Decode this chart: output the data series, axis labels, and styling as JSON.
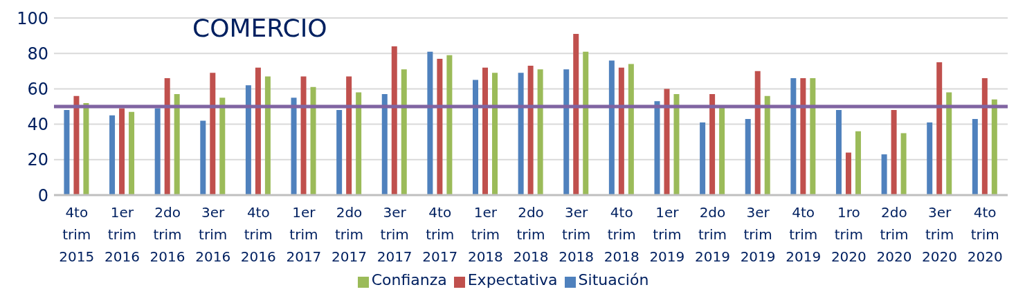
{
  "chart_data": {
    "type": "bar",
    "title": "COMERCIO",
    "categories": [
      "4to trim 2015",
      "1er trim 2016",
      "2do trim 2016",
      "3er trim 2016",
      "4to trim 2016",
      "1er trim 2017",
      "2do trim 2017",
      "3er trim 2017",
      "4to trim 2017",
      "1er trim 2018",
      "2do trim 2018",
      "3er trim 2018",
      "4to trim 2018",
      "1er trim 2019",
      "2do trim 2019",
      "3er trim 2019",
      "4to trim 2019",
      "1ro trim 2020",
      "2do trim 2020",
      "3er trim 2020",
      "4to trim 2020"
    ],
    "series": [
      {
        "name": "Situación",
        "color": "#4f81bd",
        "values": [
          48,
          45,
          49,
          42,
          62,
          55,
          48,
          57,
          81,
          65,
          69,
          71,
          76,
          53,
          41,
          43,
          66,
          48,
          23,
          41,
          43
        ]
      },
      {
        "name": "Expectativa",
        "color": "#c0504d",
        "values": [
          56,
          49,
          66,
          69,
          72,
          67,
          67,
          84,
          77,
          72,
          73,
          91,
          72,
          60,
          57,
          70,
          66,
          24,
          48,
          75,
          66
        ]
      },
      {
        "name": "Confianza",
        "color": "#9bbb59",
        "values": [
          52,
          47,
          57,
          55,
          67,
          61,
          58,
          71,
          79,
          69,
          71,
          81,
          74,
          57,
          50,
          56,
          66,
          36,
          35,
          58,
          54
        ]
      }
    ],
    "ylim": [
      0,
      100
    ],
    "yticks": [
      0,
      20,
      40,
      60,
      80,
      100
    ],
    "grid": "y",
    "legend": "bottom",
    "ref_lines": [
      {
        "axis": "y",
        "value": 50,
        "color": "#8064a2"
      }
    ]
  }
}
